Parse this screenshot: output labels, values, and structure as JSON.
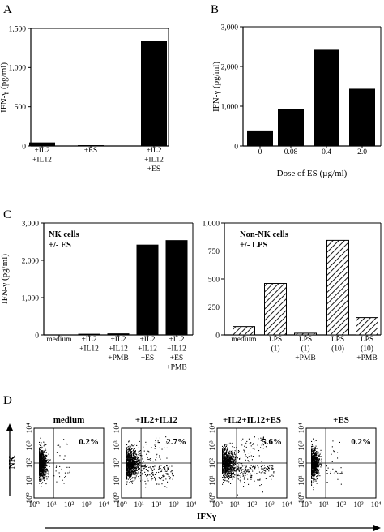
{
  "chart_data": [
    {
      "id": "A",
      "panel_label": "A",
      "type": "bar",
      "ylabel": "IFN-γ (pg/ml)",
      "ylim": [
        0,
        1500
      ],
      "yticks": [
        0,
        500,
        1000,
        1500
      ],
      "ytick_labels": [
        "0",
        "500",
        "1,000",
        "1,500"
      ],
      "categories": [
        [
          "+IL2",
          "+IL12"
        ],
        [
          "+ES"
        ],
        [
          "+IL2",
          "+IL12",
          "+ES"
        ]
      ],
      "values": [
        45,
        10,
        1340
      ],
      "bar_fill": "#000000"
    },
    {
      "id": "B",
      "panel_label": "B",
      "type": "bar",
      "ylabel": "IFN-γ (pg/ml)",
      "xlabel": "Dose of ES (µg/ml)",
      "ylim": [
        0,
        3000
      ],
      "yticks": [
        0,
        1000,
        2000,
        3000
      ],
      "ytick_labels": [
        "0",
        "1,000",
        "2,000",
        "3,000"
      ],
      "categories": [
        [
          "0"
        ],
        [
          "0.08"
        ],
        [
          "0.4"
        ],
        [
          "2.0"
        ]
      ],
      "values": [
        390,
        930,
        2420,
        1440
      ],
      "bar_fill": "#000000"
    },
    {
      "id": "C1",
      "panel_label": "C",
      "type": "bar",
      "ylabel": "IFN-γ (pg/ml)",
      "inset_text": [
        "NK cells",
        "+/- ES"
      ],
      "ylim": [
        0,
        3000
      ],
      "yticks": [
        0,
        1000,
        2000,
        3000
      ],
      "ytick_labels": [
        "0",
        "1,000",
        "2,000",
        "3,000"
      ],
      "categories": [
        [
          "medium"
        ],
        [
          "+IL2",
          "+IL12"
        ],
        [
          "+IL2",
          "+IL12",
          "+PMB"
        ],
        [
          "+IL2",
          "+IL12",
          "+ES"
        ],
        [
          "+IL2",
          "+IL12",
          "+ES",
          "+PMB"
        ]
      ],
      "values": [
        0,
        30,
        40,
        2420,
        2540
      ],
      "bar_fill": "#000000"
    },
    {
      "id": "C2",
      "type": "bar",
      "inset_text": [
        "Non-NK cells",
        "+/- LPS"
      ],
      "ylim": [
        0,
        1000
      ],
      "yticks": [
        0,
        250,
        500,
        750,
        1000
      ],
      "ytick_labels": [
        "0",
        "250",
        "500",
        "750",
        "1,000"
      ],
      "categories": [
        [
          "medium"
        ],
        [
          "LPS",
          "(1)"
        ],
        [
          "LPS",
          "(1)",
          "+PMB"
        ],
        [
          "LPS",
          "(10)"
        ],
        [
          "LPS",
          "(10)",
          "+PMB"
        ]
      ],
      "values": [
        75,
        460,
        15,
        845,
        155
      ],
      "bar_fill": "hatched"
    }
  ],
  "flow": {
    "panel_label": "D",
    "y_axis_label": "NK",
    "x_axis_label": "IFNγ",
    "tick_labels": [
      "10⁰",
      "10¹",
      "10²",
      "10³",
      "10⁴"
    ],
    "plots": [
      {
        "title": "medium",
        "percent": "0.2%",
        "spread": 0.5
      },
      {
        "title": "+IL2+IL12",
        "percent": "2.7%",
        "spread": 1.0
      },
      {
        "title": "+IL2+IL12+ES",
        "percent": "5.6%",
        "spread": 1.15
      },
      {
        "title": "+ES",
        "percent": "0.2%",
        "spread": 0.5
      }
    ]
  }
}
